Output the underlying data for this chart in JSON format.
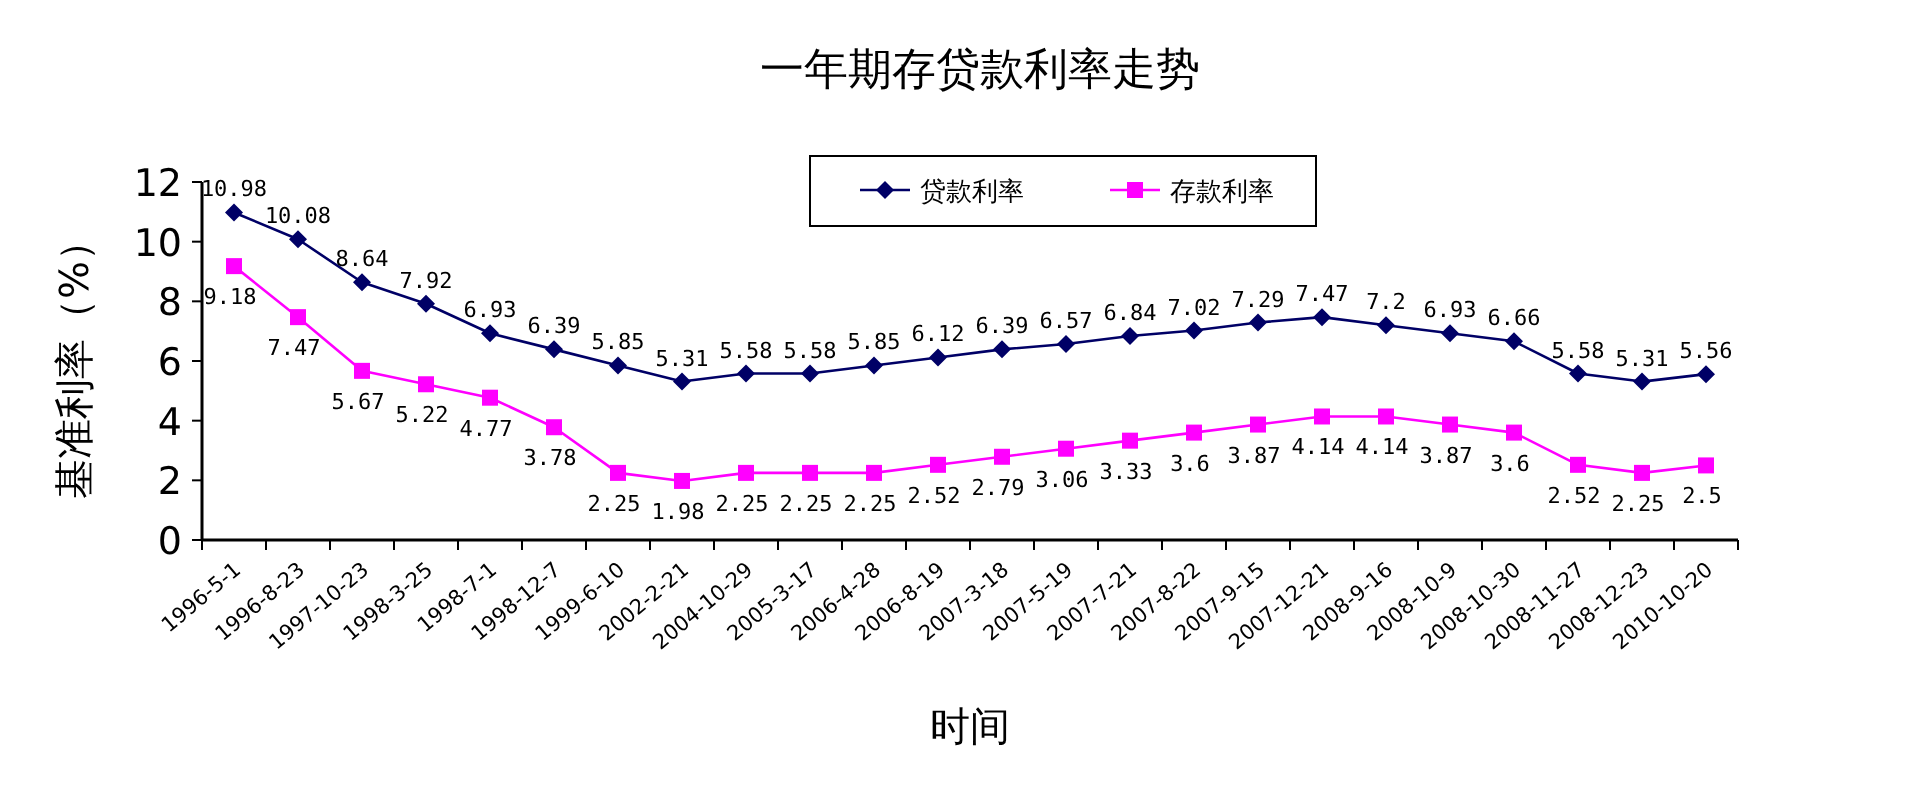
{
  "chart_data": {
    "type": "line",
    "title": "一年期存贷款利率走势",
    "xlabel": "时间",
    "ylabel": "基准利率（%）",
    "categories": [
      "1996-5-1",
      "1996-8-23",
      "1997-10-23",
      "1998-3-25",
      "1998-7-1",
      "1998-12-7",
      "1999-6-10",
      "2002-2-21",
      "2004-10-29",
      "2005-3-17",
      "2006-4-28",
      "2006-8-19",
      "2007-3-18",
      "2007-5-19",
      "2007-7-21",
      "2007-8-22",
      "2007-9-15",
      "2007-12-21",
      "2008-9-16",
      "2008-10-9",
      "2008-10-30",
      "2008-11-27",
      "2008-12-23",
      "2010-10-20"
    ],
    "series": [
      {
        "name": "贷款利率",
        "color": "#000066",
        "marker": "diamond",
        "values": [
          10.98,
          10.08,
          8.64,
          7.92,
          6.93,
          6.39,
          5.85,
          5.31,
          5.58,
          5.58,
          5.85,
          6.12,
          6.39,
          6.57,
          6.84,
          7.02,
          7.29,
          7.47,
          7.2,
          6.93,
          6.66,
          5.58,
          5.31,
          5.56
        ]
      },
      {
        "name": "存款利率",
        "color": "#ff00ff",
        "marker": "square",
        "values": [
          9.18,
          7.47,
          5.67,
          5.22,
          4.77,
          3.78,
          2.25,
          1.98,
          2.25,
          2.25,
          2.25,
          2.52,
          2.79,
          3.06,
          3.33,
          3.6,
          3.87,
          4.14,
          4.14,
          3.87,
          3.6,
          2.52,
          2.25,
          2.5
        ]
      }
    ],
    "ylim": [
      0,
      12
    ],
    "yticks": [
      0,
      2,
      4,
      6,
      8,
      10,
      12
    ],
    "data_labels": true,
    "legend": "top",
    "grid": false,
    "line_style": "solid"
  }
}
